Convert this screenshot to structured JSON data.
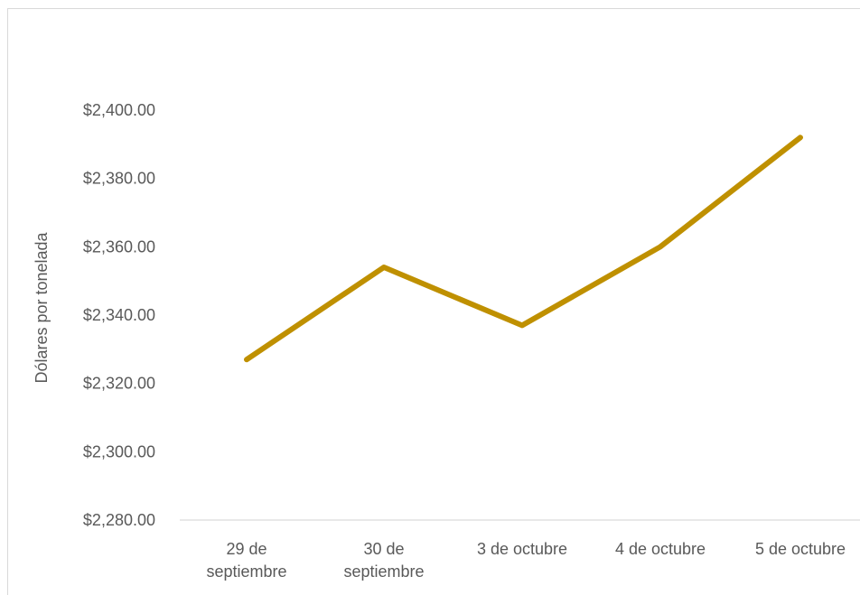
{
  "chart_data": {
    "type": "line",
    "title": "",
    "xlabel": "",
    "ylabel": "Dólares por tonelada",
    "categories": [
      [
        "29 de",
        "septiembre"
      ],
      [
        "30 de",
        "septiembre"
      ],
      [
        "3 de octubre"
      ],
      [
        "4 de octubre"
      ],
      [
        "5 de octubre"
      ]
    ],
    "series": [
      {
        "values": [
          2327,
          2354,
          2337,
          2360,
          2392
        ],
        "color": "#BF9000"
      }
    ],
    "ylim": [
      2280,
      2400
    ],
    "yticks": [
      2280,
      2300,
      2320,
      2340,
      2360,
      2380,
      2400
    ],
    "ytick_labels": [
      "$2,280.00",
      "$2,300.00",
      "$2,320.00",
      "$2,340.00",
      "$2,360.00",
      "$2,380.00",
      "$2,400.00"
    ],
    "grid": false,
    "legend": "none",
    "axis_color": "#d9d9d9",
    "text_color": "#595959"
  }
}
